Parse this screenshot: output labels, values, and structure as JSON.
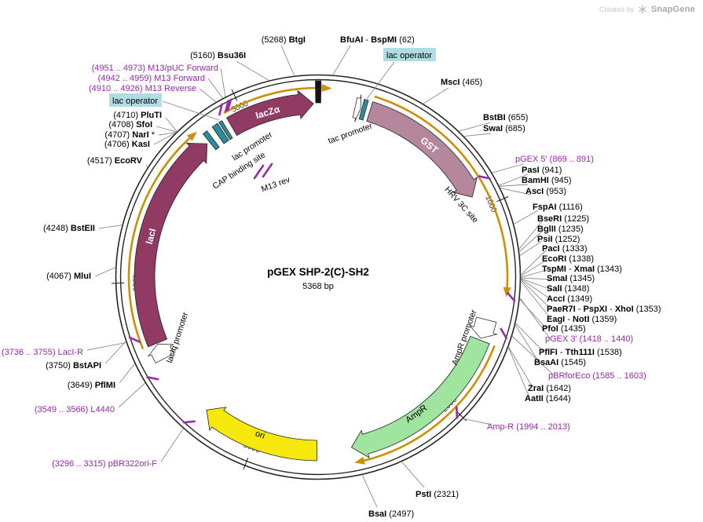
{
  "watermark": {
    "created_by": "Created by",
    "brand": "SnapGene",
    "logo_icon": "snowflake-asterisk"
  },
  "plasmid": {
    "name": "pGEX SHP-2(C)-SH2",
    "size_label": "5368 bp",
    "length": 5368
  },
  "colors": {
    "maroon": "#913a64",
    "gst_pink": "#b5879c",
    "amp_green": "#9fe49f",
    "ori_yellow": "#f6e80b",
    "teal_feature": "#2e8d9d",
    "teal_label_bg": "#b0dce4",
    "white_feature": "#ffffff",
    "orf_gold": "#cf8f04",
    "primer_purple": "#9b27af",
    "leader_gray": "#8a8a8a",
    "ring_black": "#262626",
    "black_marker": "#141414"
  },
  "ticks": [
    {
      "bp": 1000,
      "label": "1000"
    },
    {
      "bp": 2000,
      "label": "2000"
    },
    {
      "bp": 3000,
      "label": "3000"
    },
    {
      "bp": 4000,
      "label": "4000"
    },
    {
      "bp": 5000,
      "label": "5000"
    }
  ],
  "features": [
    {
      "id": "lacZa",
      "label": "lacZα",
      "start": 4923,
      "end": 5345,
      "color": "#913a64",
      "shape": "arrow"
    },
    {
      "id": "tacp",
      "label": "tac promoter",
      "start": 183,
      "end": 211,
      "color": "#ffffff",
      "shape": "arrow",
      "small": true
    },
    {
      "id": "lacopTopF",
      "label": "lac operator",
      "start": 217,
      "end": 237,
      "color": "#2e8d9d",
      "shape": "box"
    },
    {
      "id": "gst",
      "label": "GST",
      "start": 258,
      "end": 933,
      "color": "#b5879c",
      "shape": "arrow"
    },
    {
      "id": "hrv",
      "label": "HRV 3C site",
      "start": 909,
      "end": 933,
      "shape": "none"
    },
    {
      "id": "amprp",
      "label": "AmpR promoter",
      "start": 1554,
      "end": 1650,
      "color": "#ffffff",
      "shape": "arrow",
      "small": true
    },
    {
      "id": "ampR",
      "label": "AmpR",
      "start": 1659,
      "end": 2519,
      "color": "#9fe49f",
      "shape": "arrow"
    },
    {
      "id": "ori",
      "label": "ori",
      "start": 2690,
      "end": 3280,
      "color": "#f6e80b",
      "shape": "arrow"
    },
    {
      "id": "laciqp",
      "label": "lacIq promoter",
      "start": 3610,
      "end": 3688,
      "color": "#ffffff",
      "shape": "arrow",
      "small": true
    },
    {
      "id": "lacI",
      "label": "lacI",
      "start": 3693,
      "end": 4775,
      "color": "#913a64",
      "shape": "arrow"
    },
    {
      "id": "capsite",
      "label": "CAP binding site",
      "start": 4790,
      "end": 4813,
      "color": "#2e8d9d",
      "shape": "box"
    },
    {
      "id": "lacprom",
      "label": "lac promoter",
      "start": 4843,
      "end": 4873,
      "color": "#2e8d9d",
      "shape": "box"
    },
    {
      "id": "lacopLeftF",
      "label": "lac operator",
      "start": 4881,
      "end": 4897,
      "color": "#2e8d9d",
      "shape": "box"
    },
    {
      "id": "blackMarker",
      "label": "",
      "start": 5356,
      "end": 5381,
      "color": "#141414",
      "shape": "box",
      "rIn": 222,
      "rOut": 250
    },
    {
      "id": "m13revIn",
      "label": "M13 rev",
      "start": 4905,
      "end": 4925,
      "shape": "inner-primer"
    }
  ],
  "orfs": [
    {
      "id": "orf-gst-fusion",
      "start": 258,
      "end": 1433
    },
    {
      "id": "orf-ampR",
      "start": 1659,
      "end": 2519
    },
    {
      "id": "orf-lacI",
      "start": 3693,
      "end": 4775
    },
    {
      "id": "orf-lacZa",
      "start": 4923,
      "end": 5430
    }
  ],
  "primer_marks": [
    {
      "id": "pgex5-mark",
      "bp": 880
    },
    {
      "id": "pgex3-mark",
      "bp": 1429
    },
    {
      "id": "pbrforeco-mark",
      "bp": 1594
    },
    {
      "id": "ampr-mark",
      "bp": 2003
    },
    {
      "id": "pbr322orif-mark",
      "bp": 3305
    },
    {
      "id": "l4440-mark",
      "bp": 3557
    },
    {
      "id": "laciR-mark",
      "bp": 3745
    },
    {
      "id": "m13rev-mark",
      "bp": 4918
    },
    {
      "id": "m13fwd-mark",
      "bp": 4950
    },
    {
      "id": "m13puc-mark",
      "bp": 4962
    }
  ],
  "site_labels": [
    {
      "id": "btgI",
      "bp": 5268,
      "parts": [
        [
          "(5268) ",
          "n"
        ],
        [
          "BtgI",
          "b"
        ]
      ]
    },
    {
      "id": "bfuai",
      "bp": 62,
      "parts": [
        [
          "BfuAI",
          "b"
        ],
        [
          " - ",
          "n"
        ],
        [
          "BspMI",
          "b"
        ],
        [
          " (62)",
          "n"
        ]
      ]
    },
    {
      "id": "bsu36i",
      "bp": 5160,
      "parts": [
        [
          "(5160) ",
          "n"
        ],
        [
          "Bsu36I",
          "b"
        ]
      ]
    },
    {
      "id": "lacopTop",
      "bp": 227,
      "parts": [
        [
          "lac operator",
          "n"
        ]
      ],
      "highlight": true
    },
    {
      "id": "mscI",
      "bp": 465,
      "parts": [
        [
          "MscI",
          "b"
        ],
        [
          " (465)",
          "n"
        ]
      ]
    },
    {
      "id": "bstbI",
      "bp": 655,
      "parts": [
        [
          "BstBI",
          "b"
        ],
        [
          " (655)",
          "n"
        ]
      ]
    },
    {
      "id": "swaI",
      "bp": 685,
      "parts": [
        [
          "SwaI",
          "b"
        ],
        [
          " (685)",
          "n"
        ]
      ]
    },
    {
      "id": "pgex5",
      "bp": 880,
      "parts": [
        [
          "pGEX 5'",
          "p"
        ],
        [
          "   (869 .. 891)",
          "p"
        ]
      ]
    },
    {
      "id": "pasI",
      "bp": 941,
      "parts": [
        [
          "PasI",
          "b"
        ],
        [
          " (941)",
          "n"
        ]
      ]
    },
    {
      "id": "bamHI",
      "bp": 945,
      "parts": [
        [
          "BamHI",
          "b"
        ],
        [
          " (945)",
          "n"
        ]
      ]
    },
    {
      "id": "ascI",
      "bp": 953,
      "parts": [
        [
          "AscI",
          "b"
        ],
        [
          " (953)",
          "n"
        ]
      ]
    },
    {
      "id": "fspAI",
      "bp": 1116,
      "parts": [
        [
          "FspAI",
          "b"
        ],
        [
          " (1116)",
          "n"
        ]
      ]
    },
    {
      "id": "bseRI",
      "bp": 1225,
      "parts": [
        [
          "BseRI",
          "b"
        ],
        [
          " (1225)",
          "n"
        ]
      ]
    },
    {
      "id": "bglII",
      "bp": 1235,
      "parts": [
        [
          "BglII",
          "b"
        ],
        [
          " (1235)",
          "n"
        ]
      ]
    },
    {
      "id": "psiI",
      "bp": 1252,
      "parts": [
        [
          "PsiI",
          "b"
        ],
        [
          " (1252)",
          "n"
        ]
      ]
    },
    {
      "id": "pacI",
      "bp": 1333,
      "parts": [
        [
          "PacI",
          "b"
        ],
        [
          " (1333)",
          "n"
        ]
      ]
    },
    {
      "id": "ecoRI",
      "bp": 1338,
      "parts": [
        [
          "EcoRI",
          "b"
        ],
        [
          " (1338)",
          "n"
        ]
      ]
    },
    {
      "id": "tspMI",
      "bp": 1343,
      "parts": [
        [
          "TspMI",
          "b"
        ],
        [
          " - ",
          "n"
        ],
        [
          "XmaI",
          "b"
        ],
        [
          " (1343)",
          "n"
        ]
      ]
    },
    {
      "id": "smaI",
      "bp": 1345,
      "parts": [
        [
          "SmaI",
          "b"
        ],
        [
          " (1345)",
          "n"
        ]
      ]
    },
    {
      "id": "salI",
      "bp": 1348,
      "parts": [
        [
          "SalI",
          "b"
        ],
        [
          " (1348)",
          "n"
        ]
      ]
    },
    {
      "id": "accI",
      "bp": 1349,
      "parts": [
        [
          "AccI",
          "b"
        ],
        [
          " (1349)",
          "n"
        ]
      ]
    },
    {
      "id": "paeR7I",
      "bp": 1353,
      "parts": [
        [
          "PaeR7I",
          "b"
        ],
        [
          " - ",
          "n"
        ],
        [
          "PspXI",
          "b"
        ],
        [
          " - ",
          "n"
        ],
        [
          "XhoI",
          "b"
        ],
        [
          " (1353)",
          "n"
        ]
      ]
    },
    {
      "id": "eagI",
      "bp": 1359,
      "parts": [
        [
          "EagI",
          "b"
        ],
        [
          " - ",
          "n"
        ],
        [
          "N​otI",
          "b"
        ],
        [
          " (1359)",
          "n"
        ]
      ]
    },
    {
      "id": "pfoI",
      "bp": 1435,
      "parts": [
        [
          "PfoI",
          "b"
        ],
        [
          " (1435)",
          "n"
        ]
      ]
    },
    {
      "id": "pgex3",
      "bp": 1429,
      "parts": [
        [
          "pGEX 3'",
          "p"
        ],
        [
          "   (1418 .. 1440)",
          "p"
        ]
      ]
    },
    {
      "id": "pflFI",
      "bp": 1538,
      "parts": [
        [
          "PflFI",
          "b"
        ],
        [
          " - ",
          "n"
        ],
        [
          "Tth111I",
          "b"
        ],
        [
          " (1538)",
          "n"
        ]
      ]
    },
    {
      "id": "bsaAI",
      "bp": 1545,
      "parts": [
        [
          "BsaAI",
          "b"
        ],
        [
          " (1545)",
          "n"
        ]
      ]
    },
    {
      "id": "pbrforEco",
      "bp": 1594,
      "parts": [
        [
          "pBRforEco",
          "p"
        ],
        [
          "   (1585 .. 1603)",
          "p"
        ]
      ]
    },
    {
      "id": "zraI",
      "bp": 1642,
      "parts": [
        [
          "ZraI",
          "b"
        ],
        [
          " (1642)",
          "n"
        ]
      ]
    },
    {
      "id": "aatII",
      "bp": 1644,
      "parts": [
        [
          "AatII",
          "b"
        ],
        [
          " (1644)",
          "n"
        ]
      ]
    },
    {
      "id": "amprP",
      "bp": 2003,
      "parts": [
        [
          "Amp-R",
          "p"
        ],
        [
          "    (1994 .. 2013)",
          "p"
        ]
      ]
    },
    {
      "id": "pstI",
      "bp": 2321,
      "parts": [
        [
          "PstI",
          "b"
        ],
        [
          " (2321)",
          "n"
        ]
      ]
    },
    {
      "id": "bsaI",
      "bp": 2497,
      "parts": [
        [
          "BsaI",
          "b"
        ],
        [
          " (2497)",
          "n"
        ]
      ]
    },
    {
      "id": "pbr322",
      "bp": 3305,
      "parts": [
        [
          "(3296 .. 3315)  ",
          "p"
        ],
        [
          "pBR322ori-F",
          "p"
        ]
      ]
    },
    {
      "id": "l4440",
      "bp": 3557,
      "parts": [
        [
          "(3549 .. 3566)  ",
          "p"
        ],
        [
          "L4440",
          "p"
        ]
      ]
    },
    {
      "id": "pflMI",
      "bp": 3649,
      "parts": [
        [
          "(3649) ",
          "n"
        ],
        [
          "PflMI",
          "b"
        ]
      ]
    },
    {
      "id": "bstAPI",
      "bp": 3750,
      "parts": [
        [
          "(3750) ",
          "n"
        ],
        [
          "BstAPI",
          "b"
        ]
      ]
    },
    {
      "id": "laciR",
      "bp": 3745,
      "parts": [
        [
          "(3736 .. 3755)  ",
          "p"
        ],
        [
          "LacI-R",
          "p"
        ]
      ]
    },
    {
      "id": "mluI",
      "bp": 4067,
      "parts": [
        [
          "(4067) ",
          "n"
        ],
        [
          "MluI",
          "b"
        ]
      ]
    },
    {
      "id": "bstEII",
      "bp": 4248,
      "parts": [
        [
          "(4248) ",
          "n"
        ],
        [
          "BstEII",
          "b"
        ]
      ]
    },
    {
      "id": "ecoRV",
      "bp": 4517,
      "parts": [
        [
          "(4517) ",
          "n"
        ],
        [
          "EcoRV",
          "b"
        ]
      ]
    },
    {
      "id": "kasI",
      "bp": 4706,
      "parts": [
        [
          "(4706) ",
          "n"
        ],
        [
          "KasI",
          "b"
        ]
      ]
    },
    {
      "id": "narI",
      "bp": 4707,
      "parts": [
        [
          "(4707) ",
          "n"
        ],
        [
          "NarI",
          "b"
        ],
        [
          " *",
          "n"
        ]
      ]
    },
    {
      "id": "sfoI",
      "bp": 4708,
      "parts": [
        [
          "(4708) ",
          "n"
        ],
        [
          "SfoI",
          "b"
        ]
      ]
    },
    {
      "id": "pluTI",
      "bp": 4710,
      "parts": [
        [
          "(4710) ",
          "n"
        ],
        [
          "PluTI",
          "b"
        ]
      ]
    },
    {
      "id": "lacopLeft",
      "bp": 4889,
      "parts": [
        [
          "lac operator",
          "n"
        ]
      ],
      "highlight": true
    },
    {
      "id": "m13rev",
      "bp": 4918,
      "parts": [
        [
          "(4910 .. 4926)  ",
          "p"
        ],
        [
          "M13 Reverse",
          "p"
        ]
      ]
    },
    {
      "id": "m13fwd",
      "bp": 4950,
      "parts": [
        [
          "(4942 .. 4959)  ",
          "p"
        ],
        [
          "M13 Forward",
          "p"
        ]
      ]
    },
    {
      "id": "m13puc",
      "bp": 4962,
      "parts": [
        [
          "(4951 .. 4973)  ",
          "p"
        ],
        [
          "M13/pUC Forward",
          "p"
        ]
      ]
    }
  ]
}
